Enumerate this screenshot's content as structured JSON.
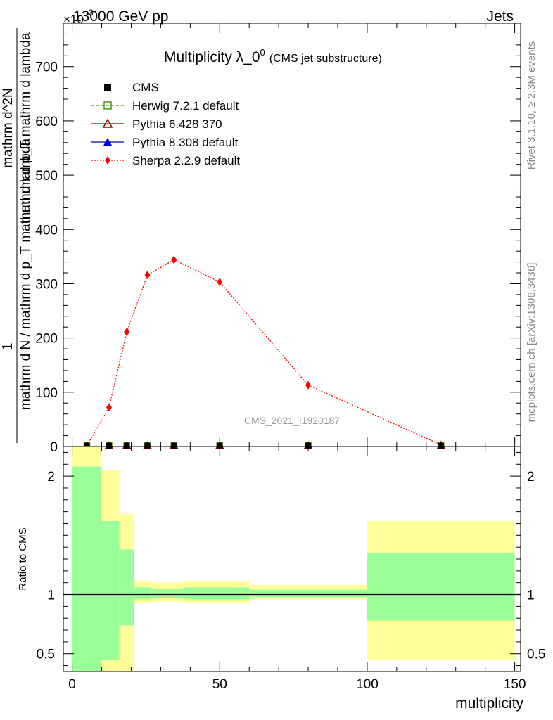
{
  "header": {
    "left": "13000 GeV pp",
    "right": "Jets",
    "exponent": "×10",
    "exponent_power": "-3"
  },
  "side_text": {
    "rivet": "Rivet 3.1.10, ≥ 2.3M events",
    "mcplots": "mcplots.cern.ch [arXiv:1306.3436]"
  },
  "watermark": "CMS_2021_I1920187",
  "colors": {
    "cms": "#000000",
    "herwig": "#4a9a00",
    "pythia6": "#8b0000",
    "pythia8": "#0000cc",
    "sherpa": "#ff0000",
    "band_inner": "#99ff99",
    "band_outer": "#ffff99"
  },
  "chart_data": [
    {
      "type": "line",
      "title": "Multiplicity λ_0",
      "title_sup": "0",
      "title_suffix": "(CMS jet substructure)",
      "ylabel_top": "1",
      "ylabel_bottom": "mathrm d N / mathrm d p_T mathrm d lambda",
      "ylabel_num": "mathrm d^2N",
      "ylabel_den": "mathrm d p_T mathrm d lambda",
      "ylim": [
        0,
        780
      ],
      "xlim": [
        -3,
        152
      ],
      "yticks": [
        0,
        100,
        200,
        300,
        400,
        500,
        600,
        700
      ],
      "legend_position": "top-left",
      "legend": [
        {
          "label": "CMS",
          "marker": "square",
          "key": "cms"
        },
        {
          "label": "Herwig 7.2.1 default",
          "marker": "open-square",
          "key": "herwig"
        },
        {
          "label": "Pythia 6.428 370",
          "marker": "open-triangle",
          "key": "pythia6"
        },
        {
          "label": "Pythia 8.308 default",
          "marker": "triangle",
          "key": "pythia8"
        },
        {
          "label": "Sherpa 2.2.9 default",
          "marker": "diamond",
          "key": "sherpa"
        }
      ],
      "series": [
        {
          "name": "Sherpa 2.2.9 default",
          "key": "sherpa",
          "x": [
            5,
            12.5,
            18.5,
            25.5,
            34.5,
            50,
            80,
            125
          ],
          "y": [
            2,
            72,
            211,
            316,
            344,
            303,
            113,
            3
          ]
        },
        {
          "name": "CMS",
          "key": "cms",
          "x": [
            5,
            12.5,
            18.5,
            25.5,
            34.5,
            50,
            80,
            125
          ],
          "y": [
            0.3,
            0.3,
            0.3,
            0.3,
            0.3,
            0.3,
            0.3,
            0.3
          ]
        }
      ]
    },
    {
      "type": "area",
      "ylabel": "Ratio to CMS",
      "xlabel": "multiplicity",
      "xlim": [
        -3,
        152
      ],
      "ylim": [
        0.35,
        2.25
      ],
      "xticks": [
        0,
        50,
        100,
        150
      ],
      "yticks": [
        0.5,
        1,
        2
      ],
      "reference": 1,
      "bands": [
        {
          "x0": 0,
          "x1": 10,
          "inner": [
            0.35,
            2.08
          ],
          "outer": [
            0.35,
            2.25
          ]
        },
        {
          "x0": 10,
          "x1": 16,
          "inner": [
            0.45,
            1.62
          ],
          "outer": [
            0.35,
            2.05
          ]
        },
        {
          "x0": 16,
          "x1": 21,
          "inner": [
            0.74,
            1.38
          ],
          "outer": [
            0.35,
            1.68
          ]
        },
        {
          "x0": 21,
          "x1": 27,
          "inner": [
            0.96,
            1.06
          ],
          "outer": [
            0.93,
            1.11
          ]
        },
        {
          "x0": 27,
          "x1": 38,
          "inner": [
            0.97,
            1.05
          ],
          "outer": [
            0.94,
            1.1
          ]
        },
        {
          "x0": 38,
          "x1": 60,
          "inner": [
            0.96,
            1.06
          ],
          "outer": [
            0.93,
            1.11
          ]
        },
        {
          "x0": 60,
          "x1": 100,
          "inner": [
            0.98,
            1.04
          ],
          "outer": [
            0.96,
            1.08
          ]
        },
        {
          "x0": 100,
          "x1": 150,
          "inner": [
            0.78,
            1.35
          ],
          "outer": [
            0.45,
            1.62
          ]
        }
      ]
    }
  ]
}
